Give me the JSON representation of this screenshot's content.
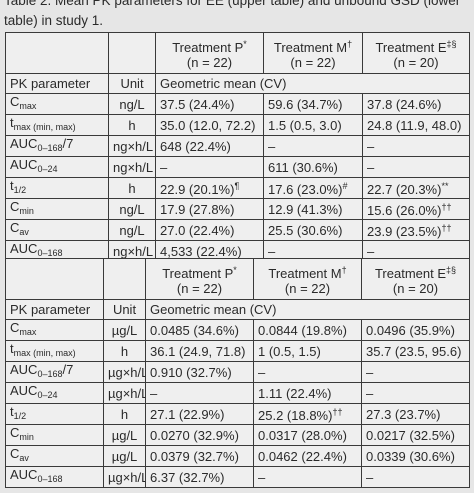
{
  "caption": "Table 2.    Mean PK parameters for EE (upper table) and unbound GSD (lower table) in study 1.",
  "tables": [
    {
      "header": {
        "treatments": [
          {
            "name": "Treatment P",
            "sup": "*",
            "n": "(n = 22)"
          },
          {
            "name": "Treatment M",
            "sup": "†",
            "n": "(n = 22)"
          },
          {
            "name": "Treatment E",
            "sup": "‡§",
            "n": "(n = 20)"
          }
        ],
        "param_label": "PK parameter",
        "unit_label": "Unit",
        "mean_label": "Geometric mean (CV)"
      },
      "rows": [
        [
          {
            "t": "C",
            "sub": "max"
          },
          "ng/L",
          "37.5 (24.4%)",
          "59.6 (34.7%)",
          "37.8 (24.6%)"
        ],
        [
          {
            "t": "t",
            "sub": "max (min, max)"
          },
          "h",
          "35.0 (12.0, 72.2)",
          "1.5 (0.5, 3.0)",
          "24.8 (11.9, 48.0)"
        ],
        [
          {
            "t": "AUC",
            "sub": "0–168",
            "after": "/7"
          },
          "ng×h/L",
          "648 (22.4%)",
          "–",
          "–"
        ],
        [
          {
            "t": "AUC",
            "sub": "0–24"
          },
          "ng×h/L",
          "–",
          "611 (30.6%)",
          "–"
        ],
        [
          {
            "t": "t",
            "sub": "1/2"
          },
          "h",
          {
            "t": "22.9 (20.1%)",
            "sup": "¶"
          },
          {
            "t": "17.6 (23.0%)",
            "sup": "#"
          },
          {
            "t": "22.7 (20.3%)",
            "sup": "**"
          }
        ],
        [
          {
            "t": "C",
            "sub": "min"
          },
          "ng/L",
          "17.9 (27.8%)",
          "12.9 (41.3%)",
          {
            "t": "15.6 (26.0%)",
            "sup": "††"
          }
        ],
        [
          {
            "t": "C",
            "sub": "av"
          },
          "ng/L",
          "27.0 (22.4%)",
          "25.5 (30.6%)",
          {
            "t": "23.9 (23.5%)",
            "sup": "††"
          }
        ],
        [
          {
            "t": "AUC",
            "sub": "0–168"
          },
          "ng×h/L",
          "4,533 (22.4%)",
          "–",
          "–"
        ]
      ]
    },
    {
      "header": {
        "treatments": [
          {
            "name": "Treatment P",
            "sup": "*",
            "n": "(n = 22)"
          },
          {
            "name": "Treatment M",
            "sup": "†",
            "n": "(n = 22)"
          },
          {
            "name": "Treatment E",
            "sup": "‡§",
            "n": "(n = 20)"
          }
        ],
        "param_label": "PK parameter",
        "unit_label": "Unit",
        "mean_label": "Geometric mean (CV)"
      },
      "rows": [
        [
          {
            "t": "C",
            "sub": "max"
          },
          "µg/L",
          "0.0485 (34.6%)",
          "0.0844 (19.8%)",
          "0.0496 (35.9%)"
        ],
        [
          {
            "t": "t",
            "sub": "max (min, max)"
          },
          "h",
          "36.1 (24.9, 71.8)",
          "1 (0.5, 1.5)",
          "35.7 (23.5, 95.6)"
        ],
        [
          {
            "t": "AUC",
            "sub": "0–168",
            "after": "/7"
          },
          "µg×h/L",
          "0.910 (32.7%)",
          "–",
          "–"
        ],
        [
          {
            "t": "AUC",
            "sub": "0–24"
          },
          "µg×h/L",
          "–",
          "1.11 (22.4%)",
          "–"
        ],
        [
          {
            "t": "t",
            "sub": "1/2"
          },
          "h",
          "27.1 (22.9%)",
          {
            "t": "25.2 (18.8%)",
            "sup": "††"
          },
          "27.3 (23.7%)"
        ],
        [
          {
            "t": "C",
            "sub": "min"
          },
          "µg/L",
          "0.0270 (32.9%)",
          "0.0317 (28.0%)",
          "0.0217 (32.5%)"
        ],
        [
          {
            "t": "C",
            "sub": "av"
          },
          "µg/L",
          "0.0379 (32.7%)",
          "0.0462 (22.4%)",
          "0.0339 (30.6%)"
        ],
        [
          {
            "t": "AUC",
            "sub": "0–168"
          },
          "µg×h/L",
          "6.37 (32.7%)",
          "–",
          "–"
        ]
      ]
    }
  ]
}
